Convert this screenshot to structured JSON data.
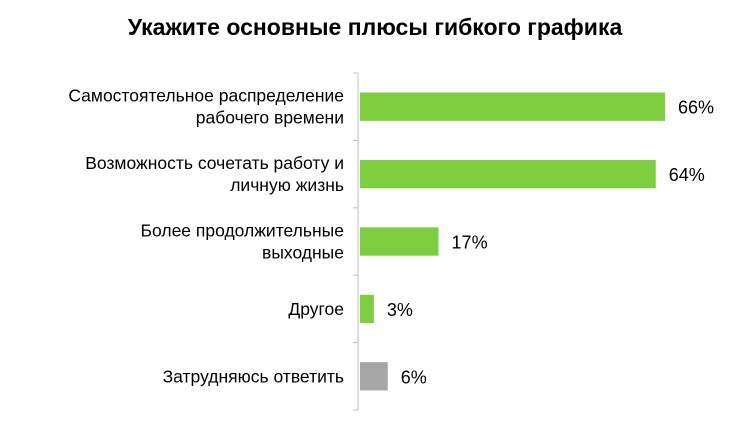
{
  "chart_data": {
    "type": "bar",
    "orientation": "horizontal",
    "title": "Укажите основные плюсы гибкого графика",
    "categories": [
      [
        "Самостоятельное распределение",
        "рабочего времени"
      ],
      [
        "Возможность сочетать работу и",
        "личную жизнь"
      ],
      [
        "Более продолжительные",
        "выходные"
      ],
      [
        "Другое"
      ],
      [
        "Затрудняюсь ответить"
      ]
    ],
    "values": [
      66,
      64,
      17,
      3,
      6
    ],
    "value_labels": [
      "66%",
      "64%",
      "17%",
      "3%",
      "6%"
    ],
    "unit": "%",
    "colors": [
      "#7dce3c",
      "#7dce3c",
      "#7dce3c",
      "#7dce3c",
      "#a6a6a6"
    ],
    "xlim": [
      0,
      100
    ],
    "grid": false,
    "legend": "none"
  }
}
